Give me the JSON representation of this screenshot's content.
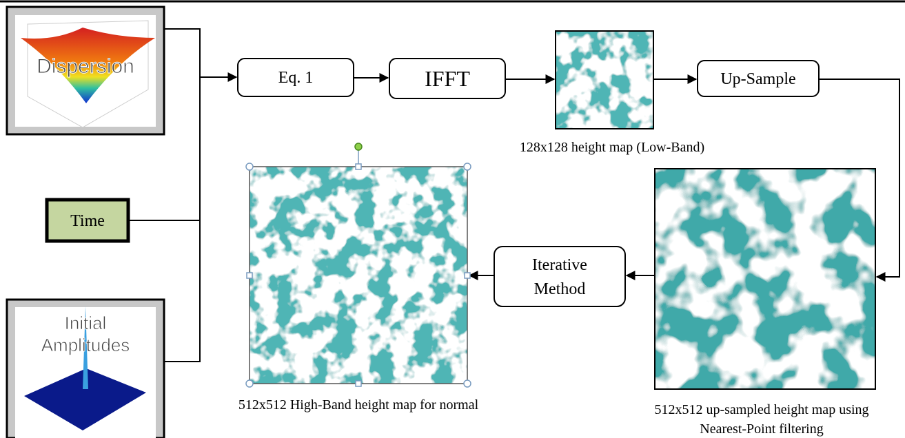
{
  "inputs": {
    "dispersion": "Dispersion",
    "time": "Time",
    "initial_amplitudes": [
      "Initial",
      "Amplitudes"
    ]
  },
  "steps": {
    "eq1": "Eq. 1",
    "ifft": "IFFT",
    "up_sample": "Up-Sample",
    "iterative_method": [
      "Iterative",
      "Method"
    ]
  },
  "captions": {
    "low_band": "128x128 height map (Low-Band)",
    "up_sampled": [
      "512x512 up-sampled height map using",
      "Nearest-Point filtering"
    ],
    "high_band": "512x512 High-Band height map for normal"
  }
}
